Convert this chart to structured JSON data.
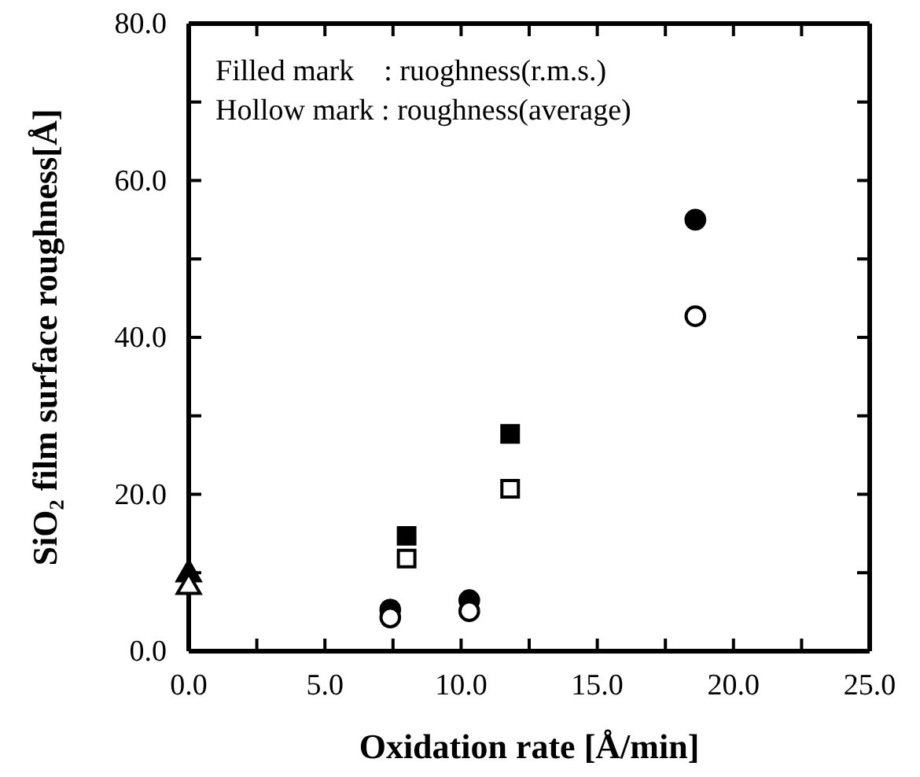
{
  "chart_data": {
    "type": "scatter",
    "xlabel": "Oxidation rate [Å/min]",
    "ylabel": "SiO₂ film surface roughness[Å]",
    "annotations": [
      "Filled mark    : ruoghness(r.m.s.)",
      "Hollow mark : roughness(average)"
    ],
    "xlim": [
      0,
      25
    ],
    "ylim": [
      0,
      80
    ],
    "xticks": [
      {
        "value": 0,
        "label": "0.0"
      },
      {
        "value": 2.5,
        "label": null
      },
      {
        "value": 5,
        "label": "5.0"
      },
      {
        "value": 7.5,
        "label": null
      },
      {
        "value": 10,
        "label": "10.0"
      },
      {
        "value": 12.5,
        "label": null
      },
      {
        "value": 15,
        "label": "15.0"
      },
      {
        "value": 17.5,
        "label": null
      },
      {
        "value": 20,
        "label": "20.0"
      },
      {
        "value": 22.5,
        "label": null
      },
      {
        "value": 25,
        "label": "25.0"
      }
    ],
    "yticks": [
      {
        "value": 0,
        "label": "0.0"
      },
      {
        "value": 10,
        "label": null
      },
      {
        "value": 20,
        "label": "20.0"
      },
      {
        "value": 30,
        "label": null
      },
      {
        "value": 40,
        "label": "40.0"
      },
      {
        "value": 50,
        "label": null
      },
      {
        "value": 60,
        "label": "60.0"
      },
      {
        "value": 70,
        "label": null
      },
      {
        "value": 80,
        "label": "80.0"
      }
    ],
    "grid": false,
    "series": [
      {
        "color": "#000000",
        "marker": "circle",
        "x": [
          7.4,
          10.3,
          18.6
        ],
        "values": [
          5.3,
          6.5,
          55
        ]
      },
      {
        "color": "#ffffff",
        "marker": "circle",
        "x": [
          7.4,
          10.3,
          18.6
        ],
        "values": [
          4.3,
          5.1,
          42.7
        ]
      },
      {
        "color": "#000000",
        "marker": "square",
        "x": [
          8.0,
          11.8
        ],
        "values": [
          14.7,
          27.7
        ]
      },
      {
        "color": "#ffffff",
        "marker": "square",
        "x": [
          8.0,
          11.8
        ],
        "values": [
          11.8,
          20.7
        ]
      },
      {
        "color": "#000000",
        "marker": "triangle",
        "x": [
          0
        ],
        "values": [
          9.8
        ]
      },
      {
        "color": "#ffffff",
        "marker": "triangle",
        "x": [
          0
        ],
        "values": [
          8.2
        ]
      }
    ]
  }
}
